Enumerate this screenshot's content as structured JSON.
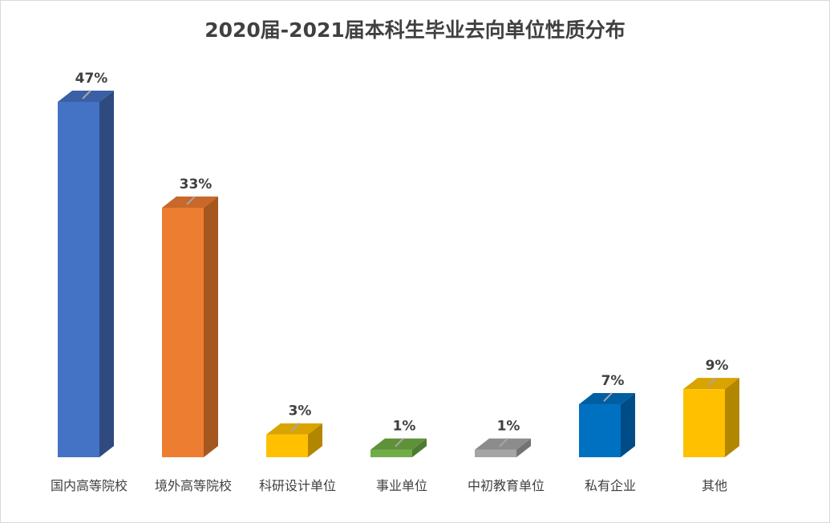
{
  "chart_data": {
    "type": "bar",
    "title": "2020届-2021届本科生毕业去向单位性质分布",
    "categories": [
      "国内高等院校",
      "境外高等院校",
      "科研设计单位",
      "事业单位",
      "中初教育单位",
      "私有企业",
      "其他"
    ],
    "values": [
      47,
      33,
      3,
      1,
      1,
      7,
      9
    ],
    "data_labels": [
      "47%",
      "33%",
      "3%",
      "1%",
      "1%",
      "7%",
      "9%"
    ],
    "value_unit": "%",
    "ylim": [
      0,
      47
    ],
    "three_d": true,
    "legend": "none",
    "grid": false,
    "colors": [
      "#4472C4",
      "#ED7D31",
      "#FFC000",
      "#70AD47",
      "#A5A5A5",
      "#0070C0",
      "#FFC000"
    ],
    "side_colors": [
      "#2E4A7F",
      "#A6561F",
      "#B38600",
      "#4E7A31",
      "#737373",
      "#004C86",
      "#B38600"
    ],
    "top_colors": [
      "#3A5FA6",
      "#C8682A",
      "#D9A300",
      "#5F9139",
      "#8C8C8C",
      "#005FA3",
      "#D9A300"
    ]
  }
}
